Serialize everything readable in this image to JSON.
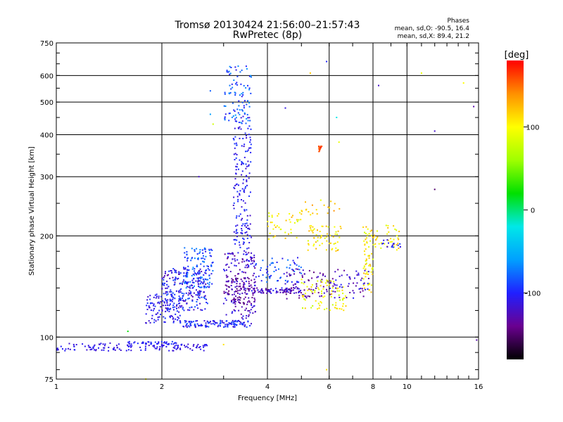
{
  "chart_data": {
    "type": "scatter",
    "title": "Tromsø 20130424 21:56:00–21:57:43",
    "subtitle": "RwPretec (8p)",
    "xlabel": "Frequency [MHz]",
    "ylabel": "Stationary phase Virtual Height [km]",
    "x_scale": "log",
    "y_scale": "log",
    "xlim": [
      1,
      16
    ],
    "ylim": [
      75,
      750
    ],
    "x_ticks": [
      1,
      2,
      4,
      6,
      8,
      10,
      16
    ],
    "x_tick_labels": [
      "1",
      "2",
      "4",
      "6",
      "8",
      "10",
      "16"
    ],
    "y_ticks": [
      75,
      100,
      200,
      300,
      400,
      500,
      600,
      750
    ],
    "y_tick_labels": [
      "75",
      "100",
      "200",
      "300",
      "400",
      "500",
      "600",
      "750"
    ],
    "grid": true,
    "legend": {
      "heading": "Phases",
      "lines": [
        "mean, sd,O: -90.5, 16.4",
        "mean, sd,X:  89.4, 21.2"
      ]
    },
    "colorbar": {
      "label": "[deg]",
      "min": -180,
      "max": 180,
      "ticks": [
        100,
        0,
        -100
      ],
      "tick_labels": [
        "100",
        "0",
        "-100"
      ],
      "colors": [
        "#000000",
        "#6a0090",
        "#2020ff",
        "#00a0ff",
        "#00e8e8",
        "#00e000",
        "#a0ff00",
        "#ffff00",
        "#ff9000",
        "#ff0000"
      ]
    },
    "clusters": [
      {
        "x": [
          1.0,
          2.7
        ],
        "y": [
          91,
          96
        ],
        "phase": [
          -120,
          -100
        ],
        "n": 140
      },
      {
        "x": [
          1.6,
          2.2
        ],
        "y": [
          95,
          97
        ],
        "phase": [
          -110,
          -90
        ],
        "n": 40
      },
      {
        "x": [
          1.8,
          2.3
        ],
        "y": [
          110,
          135
        ],
        "phase": [
          -120,
          -90
        ],
        "n": 110
      },
      {
        "x": [
          2.0,
          2.7
        ],
        "y": [
          120,
          160
        ],
        "phase": [
          -130,
          -80
        ],
        "n": 220
      },
      {
        "x": [
          2.3,
          2.8
        ],
        "y": [
          140,
          185
        ],
        "phase": [
          -110,
          -60
        ],
        "n": 120
      },
      {
        "x": [
          2.3,
          3.6
        ],
        "y": [
          107,
          112
        ],
        "phase": [
          -120,
          -80
        ],
        "n": 120
      },
      {
        "x": [
          3.0,
          3.7
        ],
        "y": [
          113,
          180
        ],
        "phase": [
          -140,
          -100
        ],
        "n": 160
      },
      {
        "x": [
          3.0,
          3.7
        ],
        "y": [
          125,
          150
        ],
        "phase": [
          -150,
          -120
        ],
        "n": 80
      },
      {
        "x": [
          3.2,
          3.6
        ],
        "y": [
          180,
          290
        ],
        "phase": [
          -120,
          -90
        ],
        "n": 90
      },
      {
        "x": [
          3.2,
          3.6
        ],
        "y": [
          290,
          450
        ],
        "phase": [
          -120,
          -90
        ],
        "n": 80
      },
      {
        "x": [
          3.0,
          3.6
        ],
        "y": [
          430,
          640
        ],
        "phase": [
          -110,
          -60
        ],
        "n": 90
      },
      {
        "x": [
          3.6,
          5.0
        ],
        "y": [
          135,
          140
        ],
        "phase": [
          -140,
          -100
        ],
        "n": 80
      },
      {
        "x": [
          3.7,
          5.0
        ],
        "y": [
          145,
          175
        ],
        "phase": [
          -110,
          -70
        ],
        "n": 60
      },
      {
        "x": [
          4.0,
          5.0
        ],
        "y": [
          195,
          235
        ],
        "phase": [
          80,
          130
        ],
        "n": 40
      },
      {
        "x": [
          4.5,
          6.0
        ],
        "y": [
          130,
          160
        ],
        "phase": [
          -150,
          -110
        ],
        "n": 70
      },
      {
        "x": [
          5.0,
          6.7
        ],
        "y": [
          120,
          150
        ],
        "phase": [
          70,
          120
        ],
        "n": 80
      },
      {
        "x": [
          5.2,
          6.5
        ],
        "y": [
          180,
          215
        ],
        "phase": [
          80,
          130
        ],
        "n": 60
      },
      {
        "x": [
          5.0,
          6.5
        ],
        "y": [
          230,
          260
        ],
        "phase": [
          90,
          140
        ],
        "n": 20
      },
      {
        "x": [
          6.0,
          7.8
        ],
        "y": [
          130,
          160
        ],
        "phase": [
          -140,
          -100
        ],
        "n": 60
      },
      {
        "x": [
          7.5,
          8.0
        ],
        "y": [
          135,
          180
        ],
        "phase": [
          80,
          130
        ],
        "n": 40
      },
      {
        "x": [
          7.5,
          9.5
        ],
        "y": [
          180,
          215
        ],
        "phase": [
          80,
          130
        ],
        "n": 60
      },
      {
        "x": [
          8.5,
          9.6
        ],
        "y": [
          185,
          195
        ],
        "phase": [
          -120,
          -90
        ],
        "n": 15
      },
      {
        "x": [
          5.6,
          5.8
        ],
        "y": [
          355,
          370
        ],
        "phase": [
          150,
          170
        ],
        "n": 12
      }
    ],
    "points": [
      {
        "x": 2.75,
        "y": 460,
        "phase": -60
      },
      {
        "x": 2.8,
        "y": 430,
        "phase": 80
      },
      {
        "x": 2.75,
        "y": 540,
        "phase": -80
      },
      {
        "x": 4.5,
        "y": 480,
        "phase": -110
      },
      {
        "x": 5.3,
        "y": 610,
        "phase": 120
      },
      {
        "x": 5.9,
        "y": 660,
        "phase": -100
      },
      {
        "x": 6.3,
        "y": 450,
        "phase": -20
      },
      {
        "x": 6.4,
        "y": 380,
        "phase": 90
      },
      {
        "x": 8.3,
        "y": 560,
        "phase": -120
      },
      {
        "x": 11.0,
        "y": 610,
        "phase": 90
      },
      {
        "x": 12.0,
        "y": 410,
        "phase": -120
      },
      {
        "x": 14.5,
        "y": 570,
        "phase": 100
      },
      {
        "x": 15.5,
        "y": 485,
        "phase": -130
      },
      {
        "x": 15.8,
        "y": 98,
        "phase": -130
      },
      {
        "x": 12.0,
        "y": 275,
        "phase": -150
      },
      {
        "x": 5.9,
        "y": 80,
        "phase": 110
      },
      {
        "x": 3.0,
        "y": 95,
        "phase": 110
      },
      {
        "x": 2.55,
        "y": 300,
        "phase": -120
      },
      {
        "x": 1.6,
        "y": 104,
        "phase": 20
      },
      {
        "x": 1.8,
        "y": 75,
        "phase": 100
      }
    ]
  }
}
